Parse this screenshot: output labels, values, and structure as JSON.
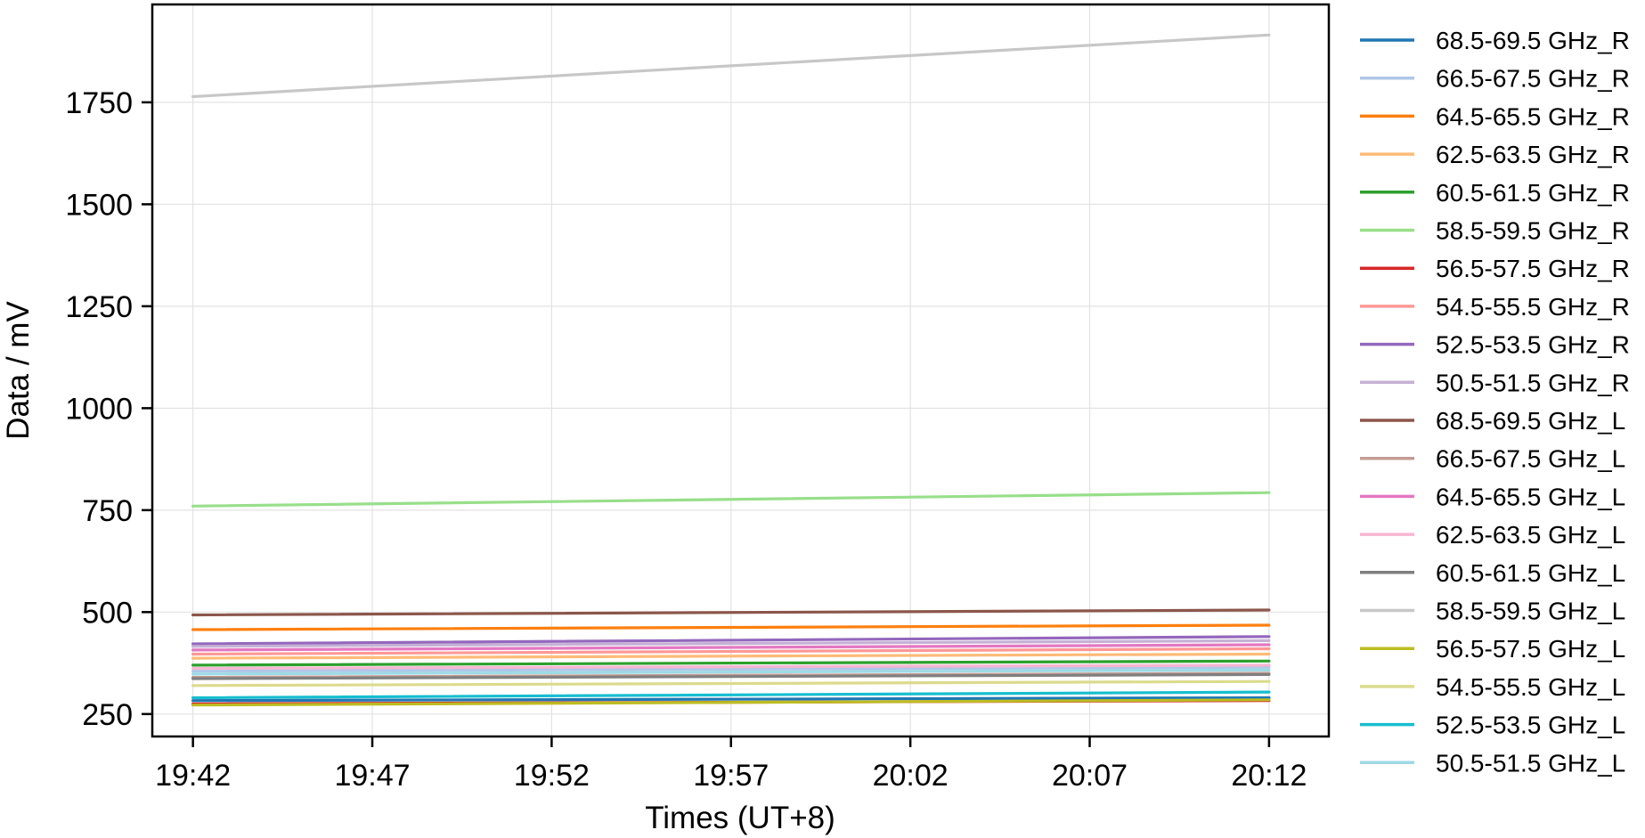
{
  "chart_data": {
    "type": "line",
    "title": "",
    "xlabel": "Times (UT+8)",
    "ylabel": "Data / mV",
    "x_tick_labels": [
      "19:42",
      "19:47",
      "19:52",
      "19:57",
      "20:02",
      "20:07",
      "20:12"
    ],
    "x": [
      "19:42",
      "20:12"
    ],
    "xlim": [
      "19:40:52",
      "20:13:40"
    ],
    "y_ticks": [
      250,
      500,
      750,
      1000,
      1250,
      1500,
      1750
    ],
    "ylim": [
      195,
      1990
    ],
    "grid": true,
    "legend_position": "outside-right",
    "series": [
      {
        "name": "68.5-69.5 GHz_R",
        "color": "#1f77b4",
        "values": [
          283,
          290
        ]
      },
      {
        "name": "66.5-67.5 GHz_R",
        "color": "#aec7e8",
        "values": [
          355,
          365
        ]
      },
      {
        "name": "64.5-65.5 GHz_R",
        "color": "#ff7f0e",
        "values": [
          457,
          468
        ]
      },
      {
        "name": "62.5-63.5 GHz_R",
        "color": "#ffbb78",
        "values": [
          387,
          397
        ]
      },
      {
        "name": "60.5-61.5 GHz_R",
        "color": "#2ca02c",
        "values": [
          370,
          380
        ]
      },
      {
        "name": "58.5-59.5 GHz_R",
        "color": "#98df8a",
        "values": [
          760,
          793
        ]
      },
      {
        "name": "56.5-57.5 GHz_R",
        "color": "#d62728",
        "values": [
          275,
          283
        ]
      },
      {
        "name": "54.5-55.5 GHz_R",
        "color": "#ff9896",
        "values": [
          397,
          410
        ]
      },
      {
        "name": "52.5-53.5 GHz_R",
        "color": "#9467bd",
        "values": [
          422,
          440
        ]
      },
      {
        "name": "50.5-51.5 GHz_R",
        "color": "#c5b0d5",
        "values": [
          416,
          430
        ]
      },
      {
        "name": "68.5-69.5 GHz_L",
        "color": "#8c564b",
        "values": [
          493,
          505
        ]
      },
      {
        "name": "66.5-67.5 GHz_L",
        "color": "#c49c94",
        "values": [
          340,
          350
        ]
      },
      {
        "name": "64.5-65.5 GHz_L",
        "color": "#e377c2",
        "values": [
          407,
          420
        ]
      },
      {
        "name": "62.5-63.5 GHz_L",
        "color": "#f7b6d2",
        "values": [
          362,
          370
        ]
      },
      {
        "name": "60.5-61.5 GHz_L",
        "color": "#7f7f7f",
        "values": [
          337,
          347
        ]
      },
      {
        "name": "58.5-59.5 GHz_L",
        "color": "#c7c7c7",
        "values": [
          1764,
          1915
        ]
      },
      {
        "name": "56.5-57.5 GHz_L",
        "color": "#bcbd22",
        "values": [
          272,
          285
        ]
      },
      {
        "name": "54.5-55.5 GHz_L",
        "color": "#dbdb8d",
        "values": [
          320,
          330
        ]
      },
      {
        "name": "52.5-53.5 GHz_L",
        "color": "#17becf",
        "values": [
          290,
          304
        ]
      },
      {
        "name": "50.5-51.5 GHz_L",
        "color": "#9edae5",
        "values": [
          348,
          358
        ]
      }
    ]
  }
}
